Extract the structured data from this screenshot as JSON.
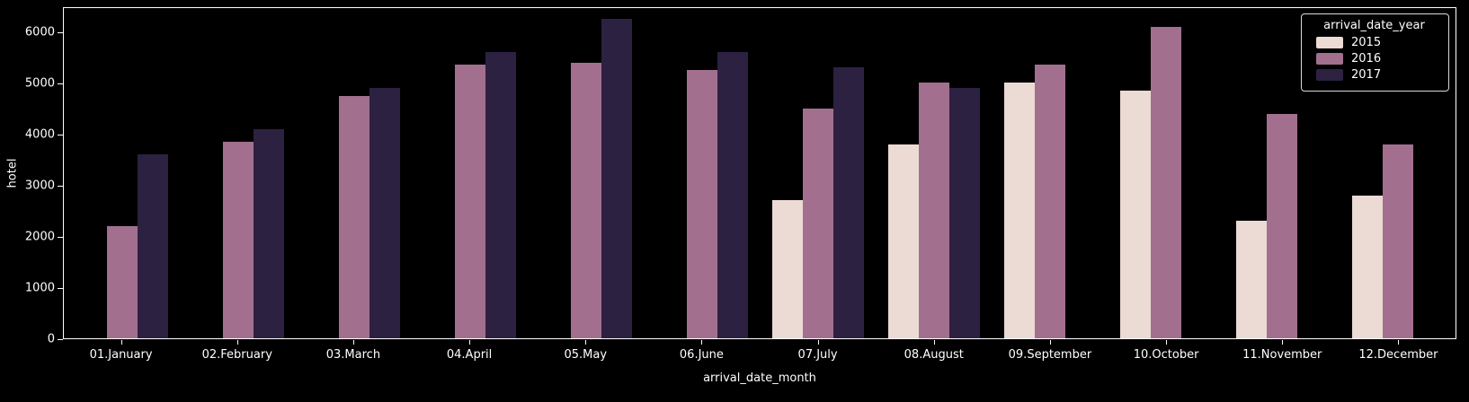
{
  "chart_data": {
    "type": "bar",
    "title": "",
    "xlabel": "arrival_date_month",
    "ylabel": "hotel",
    "ylim": [
      0,
      6500
    ],
    "yticks": [
      0,
      1000,
      2000,
      3000,
      4000,
      5000,
      6000
    ],
    "grid": false,
    "categories": [
      "01.January",
      "02.February",
      "03.March",
      "04.April",
      "05.May",
      "06.June",
      "07.July",
      "08.August",
      "09.September",
      "10.October",
      "11.November",
      "12.December"
    ],
    "legend": {
      "title": "arrival_date_year",
      "position": "upper right"
    },
    "series": [
      {
        "name": "2015",
        "color": "#ecdad4",
        "values": [
          null,
          null,
          null,
          null,
          null,
          null,
          2700,
          3800,
          5000,
          4850,
          2300,
          2800
        ]
      },
      {
        "name": "2016",
        "color": "#a2708e",
        "values": [
          2200,
          3850,
          4750,
          5350,
          5400,
          5250,
          4500,
          5000,
          5350,
          6100,
          4400,
          3800
        ]
      },
      {
        "name": "2017",
        "color": "#2d2142",
        "values": [
          3600,
          4100,
          4900,
          5600,
          6250,
          5600,
          5300,
          4900,
          null,
          null,
          null,
          null
        ]
      }
    ]
  },
  "colors": {
    "background": "#000000",
    "text": "#ffffff",
    "axis": "#ffffff",
    "legend_border": "#d9d9d9"
  }
}
